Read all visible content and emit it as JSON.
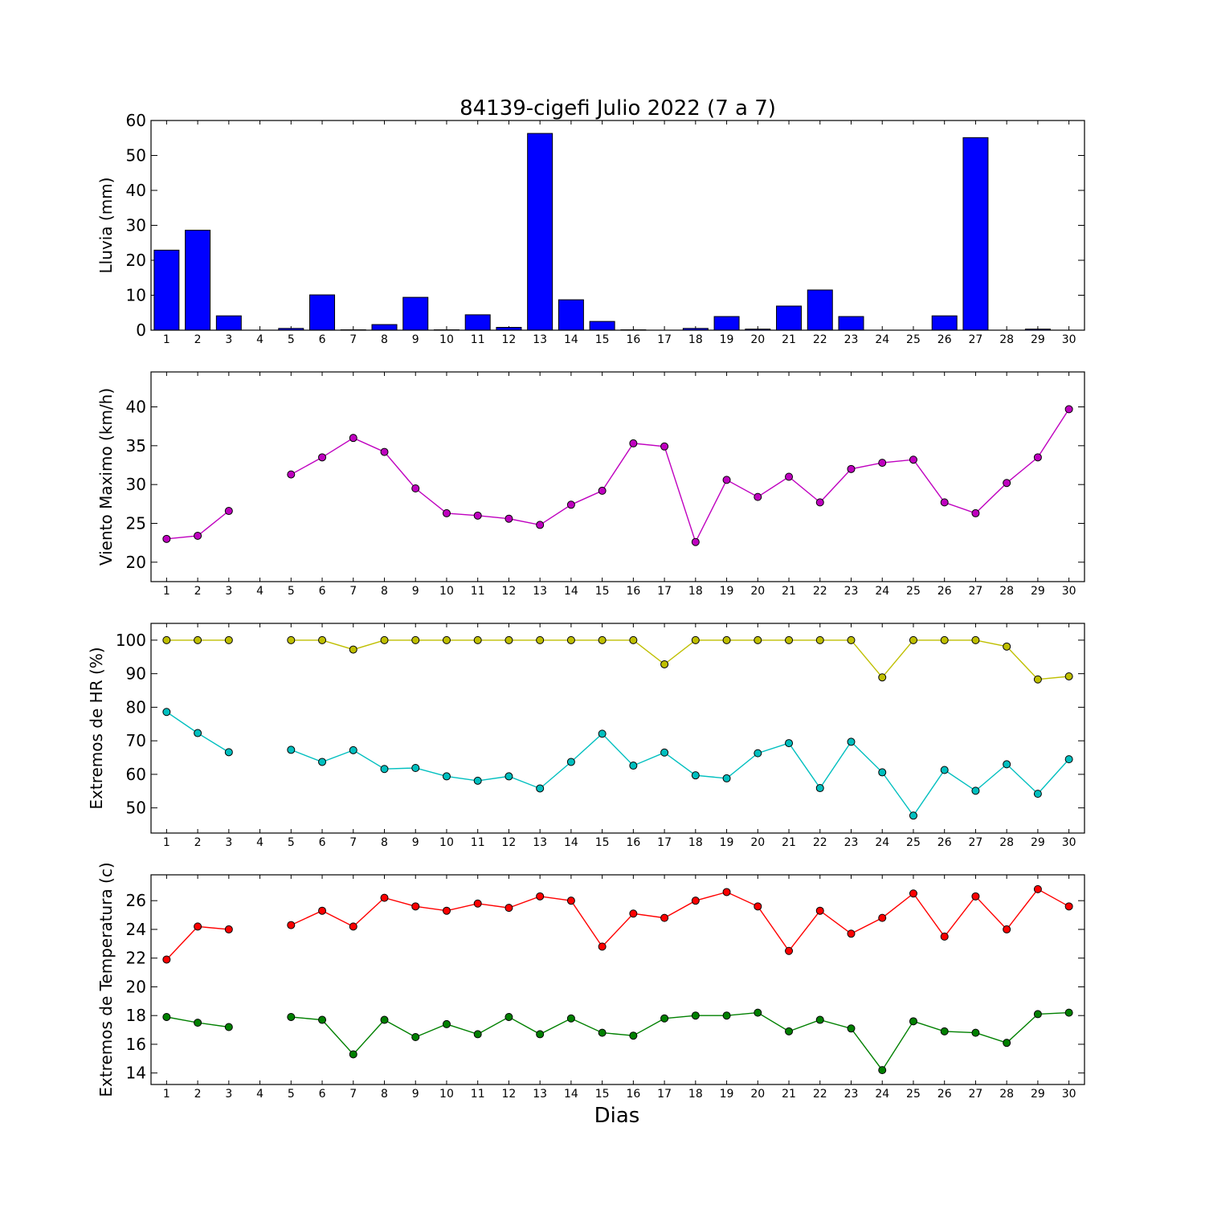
{
  "title": "84139-cigefi Julio 2022  (7 a 7)",
  "xlabel": "Dias",
  "chart_data": [
    {
      "type": "bar",
      "ylabel": "Lluvia (mm)",
      "categories": [
        "1",
        "2",
        "3",
        "4",
        "5",
        "6",
        "7",
        "8",
        "9",
        "10",
        "11",
        "12",
        "13",
        "14",
        "15",
        "16",
        "17",
        "18",
        "19",
        "20",
        "21",
        "22",
        "23",
        "24",
        "25",
        "26",
        "27",
        "28",
        "29",
        "30"
      ],
      "ylim": [
        0,
        60
      ],
      "yticks": [
        0,
        10,
        20,
        30,
        40,
        50,
        60
      ],
      "series": [
        {
          "color": "#0000ff",
          "values": [
            22.9,
            28.6,
            4.1,
            null,
            0.5,
            10.1,
            0.1,
            1.6,
            9.4,
            0.1,
            4.4,
            0.8,
            56.3,
            8.7,
            2.5,
            0.1,
            0.0,
            0.5,
            3.9,
            0.3,
            6.9,
            11.5,
            3.9,
            0.0,
            0.0,
            4.1,
            55.1,
            0.0,
            0.3,
            0.0
          ]
        }
      ]
    },
    {
      "type": "line",
      "ylabel": "Viento Maximo (km/h)",
      "ylim": [
        17.5,
        44.5
      ],
      "yticks": [
        20,
        25,
        30,
        35,
        40
      ],
      "series": [
        {
          "color": "#bf00bf",
          "values": [
            23.0,
            23.4,
            26.6,
            null,
            31.3,
            33.5,
            36.0,
            34.2,
            29.5,
            26.3,
            26.0,
            25.6,
            24.8,
            27.4,
            29.2,
            35.3,
            34.9,
            22.6,
            30.6,
            28.4,
            31.0,
            27.7,
            32.0,
            32.8,
            33.2,
            27.7,
            26.3,
            30.2,
            33.5,
            39.7
          ]
        }
      ]
    },
    {
      "type": "line",
      "ylabel": "Extremos de HR (%)",
      "ylim": [
        42.5,
        105
      ],
      "yticks": [
        50,
        60,
        70,
        80,
        90,
        100
      ],
      "series": [
        {
          "color": "#bfbf00",
          "values": [
            100,
            100,
            100,
            null,
            100,
            100,
            97.2,
            100,
            100,
            100,
            100,
            100,
            100,
            100,
            100,
            100,
            92.8,
            100,
            100,
            100,
            100,
            100,
            100,
            88.9,
            100,
            100,
            100,
            98.1,
            88.3,
            89.2
          ]
        },
        {
          "color": "#00bfbf",
          "values": [
            78.6,
            72.3,
            66.6,
            null,
            67.3,
            63.7,
            67.2,
            61.6,
            61.9,
            59.4,
            58.1,
            59.4,
            55.8,
            63.7,
            72.1,
            62.6,
            66.5,
            59.7,
            58.8,
            66.3,
            69.3,
            55.9,
            69.7,
            60.6,
            47.7,
            61.3,
            55.1,
            63.0,
            54.2,
            64.5
          ]
        }
      ]
    },
    {
      "type": "line",
      "ylabel": "Extremos de Temperatura (c)",
      "ylim": [
        13.2,
        27.8
      ],
      "yticks": [
        14,
        16,
        18,
        20,
        22,
        24,
        26
      ],
      "series": [
        {
          "color": "#ff0000",
          "values": [
            21.9,
            24.2,
            24.0,
            null,
            24.3,
            25.3,
            24.2,
            26.2,
            25.6,
            25.3,
            25.8,
            25.5,
            26.3,
            26.0,
            22.8,
            25.1,
            24.8,
            26.0,
            26.6,
            25.6,
            22.5,
            25.3,
            23.7,
            24.8,
            26.5,
            23.5,
            26.3,
            24.0,
            26.8,
            25.6
          ]
        },
        {
          "color": "#008000",
          "values": [
            17.9,
            17.5,
            17.2,
            null,
            17.9,
            17.7,
            15.3,
            17.7,
            16.5,
            17.4,
            16.7,
            17.9,
            16.7,
            17.8,
            16.8,
            16.6,
            17.8,
            18.0,
            18.0,
            18.2,
            16.9,
            17.7,
            17.1,
            14.2,
            17.6,
            16.9,
            16.8,
            16.1,
            18.1,
            18.2
          ]
        }
      ]
    }
  ]
}
